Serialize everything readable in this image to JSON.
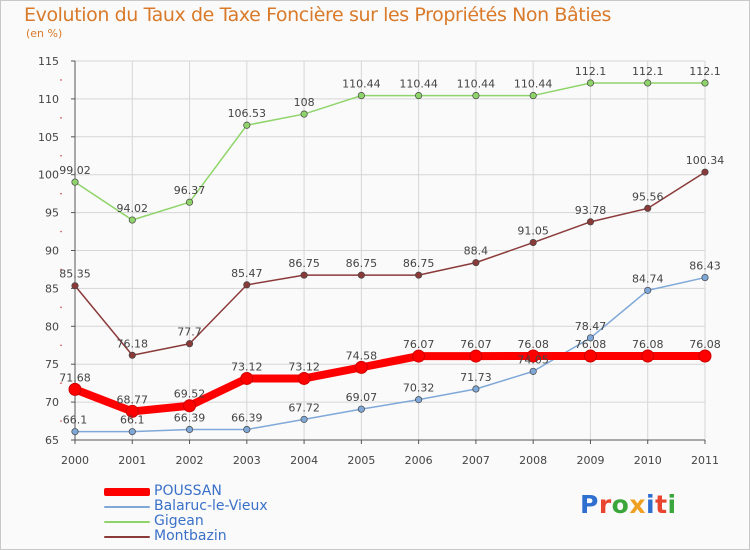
{
  "title": "Evolution du Taux de Taxe Foncière sur les Propriétés Non Bâties",
  "unit_label": "(en %)",
  "logo": {
    "text": "Proxiti",
    "letter_colors": [
      "#2f6fd0",
      "#e8442e",
      "#3aa63c",
      "#f0a020",
      "#2f6fd0",
      "#e8442e",
      "#3aa63c"
    ]
  },
  "chart_data": {
    "type": "line",
    "x": [
      "2000",
      "2001",
      "2002",
      "2003",
      "2004",
      "2005",
      "2006",
      "2007",
      "2008",
      "2009",
      "2010",
      "2011"
    ],
    "ylim": [
      65,
      115
    ],
    "yticks": [
      65,
      70,
      75,
      80,
      85,
      90,
      95,
      100,
      105,
      110,
      115
    ],
    "grid": true,
    "legend_placement": "bottom-left",
    "series": [
      {
        "name": "POUSSAN",
        "color": "#ff0000",
        "values": [
          71.68,
          68.77,
          69.52,
          73.12,
          73.12,
          74.58,
          76.07,
          76.07,
          76.08,
          76.08,
          76.08,
          76.08
        ],
        "labels": [
          "71.68",
          "68.77",
          "69.52",
          "73.12",
          "73.12",
          "74.58",
          "76.07",
          "76.07",
          "76.08",
          "76.08",
          "76.08",
          "76.08"
        ]
      },
      {
        "name": "Balaruc-le-Vieux",
        "color": "#7fa8d8",
        "values": [
          66.1,
          66.1,
          66.39,
          66.39,
          67.72,
          69.07,
          70.32,
          71.73,
          74.05,
          78.47,
          84.74,
          86.43
        ],
        "labels": [
          "66.1",
          "66.1",
          "66.39",
          "66.39",
          "67.72",
          "69.07",
          "70.32",
          "71.73",
          "74.05",
          "78.47",
          "84.74",
          "86.43"
        ]
      },
      {
        "name": "Gigean",
        "color": "#8fd46a",
        "values": [
          99.02,
          94.02,
          96.37,
          106.53,
          108,
          110.44,
          110.44,
          110.44,
          110.44,
          112.1,
          112.1,
          112.1
        ],
        "labels": [
          "99.02",
          "94.02",
          "96.37",
          "106.53",
          "108",
          "110.44",
          "110.44",
          "110.44",
          "110.44",
          "112.1",
          "112.1",
          "112.1"
        ]
      },
      {
        "name": "Montbazin",
        "color": "#8b3a3a",
        "values": [
          85.35,
          76.18,
          77.7,
          85.47,
          86.75,
          86.75,
          86.75,
          88.4,
          91.05,
          93.78,
          95.56,
          100.34
        ],
        "labels": [
          "85.35",
          "76.18",
          "77.7",
          "85.47",
          "86.75",
          "86.75",
          "86.75",
          "88.4",
          "91.05",
          "93.78",
          "95.56",
          "100.34"
        ]
      }
    ]
  }
}
